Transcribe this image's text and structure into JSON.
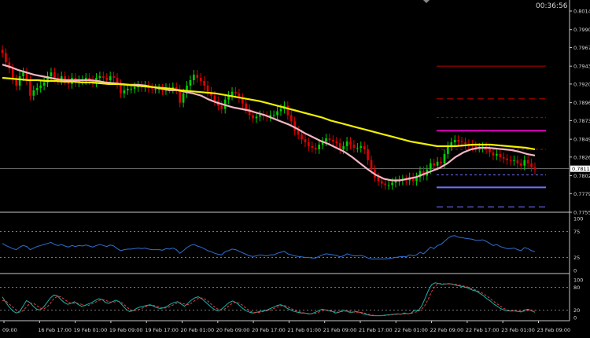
{
  "clock": "00:36:56",
  "colors": {
    "background": "#000000",
    "up": "#00d000",
    "down": "#e00000",
    "ma_fast": "#f4b6c2",
    "ma_slow": "#f0f000",
    "rsi": "#2f6fd0",
    "stoch_main": "#1ab0a8",
    "stoch_signal": "#e04040",
    "level_magenta": "#e000c0",
    "level_red": "#c00000",
    "level_blue": "#7070ff",
    "current_line": "#888888",
    "axis": "#d8d8d8"
  },
  "chart_data": [
    {
      "type": "candlestick",
      "panel": "price",
      "ylim": [
        0.7755,
        0.8014
      ],
      "price_ticks": [
        "0.8014",
        "0.7990",
        "0.7967",
        "0.7943",
        "0.7920",
        "0.7896",
        "0.7873",
        "0.7849",
        "0.7826",
        "0.7802",
        "0.7779",
        "0.7755"
      ],
      "current_price": "0.7811",
      "time_labels": [
        "09:00",
        "16 Feb 17:00",
        "19 Feb 01:00",
        "19 Feb 09:00",
        "19 Feb 17:00",
        "20 Feb 01:00",
        "20 Feb 09:00",
        "20 Feb 17:00",
        "21 Feb 01:00",
        "21 Feb 09:00",
        "21 Feb 17:00",
        "22 Feb 01:00",
        "22 Feb 09:00",
        "22 Feb 17:00",
        "23 Feb 01:00",
        "23 Feb 09:00"
      ],
      "close": [
        0.796,
        0.7948,
        0.794,
        0.7926,
        0.7918,
        0.793,
        0.7935,
        0.7925,
        0.7905,
        0.7912,
        0.7915,
        0.7918,
        0.7922,
        0.793,
        0.7935,
        0.7928,
        0.7925,
        0.793,
        0.7925,
        0.792,
        0.7928,
        0.7922,
        0.7925,
        0.7925,
        0.7928,
        0.7925,
        0.7922,
        0.7928,
        0.793,
        0.7928,
        0.7925,
        0.793,
        0.7928,
        0.792,
        0.7908,
        0.7912,
        0.7914,
        0.7914,
        0.7916,
        0.7918,
        0.7916,
        0.7918,
        0.7915,
        0.7914,
        0.7914,
        0.7914,
        0.7912,
        0.7915,
        0.7914,
        0.7916,
        0.7913,
        0.7896,
        0.7908,
        0.7918,
        0.7925,
        0.7932,
        0.7928,
        0.7924,
        0.7918,
        0.791,
        0.7905,
        0.7898,
        0.7892,
        0.7888,
        0.79,
        0.7905,
        0.791,
        0.7908,
        0.7902,
        0.7895,
        0.7888,
        0.788,
        0.7876,
        0.7878,
        0.788,
        0.7879,
        0.7878,
        0.788,
        0.788,
        0.7885,
        0.7888,
        0.7892,
        0.788,
        0.7872,
        0.786,
        0.7855,
        0.7849,
        0.7845,
        0.784,
        0.7838,
        0.7836,
        0.7842,
        0.7846,
        0.785,
        0.7848,
        0.7846,
        0.7844,
        0.7836,
        0.784,
        0.7846,
        0.7842,
        0.7838,
        0.7838,
        0.784,
        0.7836,
        0.7822,
        0.781,
        0.78,
        0.7795,
        0.7792,
        0.779,
        0.779,
        0.7793,
        0.7795,
        0.7796,
        0.7797,
        0.7796,
        0.78,
        0.7795,
        0.78,
        0.7808,
        0.7802,
        0.781,
        0.7818,
        0.7815,
        0.782,
        0.7818,
        0.783,
        0.784,
        0.7845,
        0.7848,
        0.7846,
        0.7845,
        0.7843,
        0.7842,
        0.784,
        0.7838,
        0.7838,
        0.7839,
        0.7836,
        0.7832,
        0.7828,
        0.783,
        0.7826,
        0.7824,
        0.7822,
        0.7821,
        0.7822,
        0.7818,
        0.7815,
        0.7822,
        0.7818,
        0.7813,
        0.781
      ],
      "overlays": [
        {
          "id": "ma_fast",
          "values": [
            0.7945,
            0.7942,
            0.7938,
            0.7935,
            0.7932,
            0.793,
            0.7928,
            0.7926,
            0.7925,
            0.7925,
            0.7925,
            0.7925,
            0.7924,
            0.7922,
            0.7921,
            0.792,
            0.7919,
            0.7919,
            0.7918,
            0.7916,
            0.7914,
            0.7912,
            0.7912,
            0.791,
            0.7908,
            0.7905,
            0.79,
            0.7896,
            0.7893,
            0.789,
            0.7888,
            0.7886,
            0.7883,
            0.788,
            0.7876,
            0.7872,
            0.7868,
            0.7863,
            0.7857,
            0.7852,
            0.7847,
            0.7843,
            0.7838,
            0.7833,
            0.7826,
            0.7818,
            0.781,
            0.7803,
            0.7798,
            0.7796,
            0.7796,
            0.7798,
            0.78,
            0.7804,
            0.7808,
            0.7812,
            0.7818,
            0.7826,
            0.7832,
            0.7836,
            0.7838,
            0.7838,
            0.7837,
            0.7836,
            0.7835,
            0.7833,
            0.783,
            0.7828
          ]
        },
        {
          "id": "ma_slow",
          "values": [
            0.7928,
            0.7927,
            0.7926,
            0.7925,
            0.7925,
            0.7924,
            0.7924,
            0.7923,
            0.7923,
            0.7922,
            0.7922,
            0.7921,
            0.792,
            0.792,
            0.7919,
            0.7918,
            0.7917,
            0.7916,
            0.7915,
            0.7914,
            0.7912,
            0.7911,
            0.791,
            0.7909,
            0.7908,
            0.7906,
            0.7904,
            0.7902,
            0.79,
            0.7898,
            0.7895,
            0.7892,
            0.7889,
            0.7886,
            0.7883,
            0.788,
            0.7877,
            0.7873,
            0.787,
            0.7867,
            0.7864,
            0.7861,
            0.7858,
            0.7855,
            0.7852,
            0.7849,
            0.7846,
            0.7844,
            0.7842,
            0.784,
            0.784,
            0.784,
            0.7841,
            0.7842,
            0.7842,
            0.7842,
            0.7841,
            0.784,
            0.7839,
            0.7838,
            0.7836
          ]
        }
      ],
      "levels": [
        {
          "value": 0.7943,
          "style": "solid",
          "color": "level_red"
        },
        {
          "value": 0.7901,
          "style": "dashed",
          "color": "level_red"
        },
        {
          "value": 0.7877,
          "style": "dotted",
          "color": "level_red"
        },
        {
          "value": 0.786,
          "style": "solid",
          "color": "level_magenta"
        },
        {
          "value": 0.7836,
          "style": "dotted",
          "color": "level_red"
        },
        {
          "value": 0.7803,
          "style": "dotted",
          "color": "level_blue"
        },
        {
          "value": 0.7787,
          "style": "solid",
          "color": "level_blue"
        },
        {
          "value": 0.7762,
          "style": "dashed",
          "color": "level_blue"
        }
      ]
    },
    {
      "type": "line",
      "panel": "rsi",
      "ylim": [
        0,
        100
      ],
      "ticks": [
        "100",
        "75",
        "25",
        "0"
      ],
      "values": [
        52,
        48,
        45,
        42,
        40,
        45,
        48,
        46,
        40,
        43,
        46,
        48,
        50,
        52,
        54,
        50,
        48,
        50,
        47,
        45,
        48,
        46,
        48,
        47,
        49,
        47,
        45,
        48,
        50,
        48,
        46,
        49,
        47,
        42,
        38,
        40,
        41,
        41,
        42,
        43,
        42,
        43,
        41,
        40,
        40,
        40,
        39,
        42,
        41,
        43,
        40,
        33,
        38,
        44,
        48,
        50,
        47,
        45,
        42,
        38,
        36,
        33,
        31,
        30,
        36,
        38,
        41,
        40,
        37,
        34,
        31,
        28,
        27,
        28,
        30,
        29,
        28,
        30,
        30,
        33,
        35,
        37,
        32,
        30,
        28,
        27,
        26,
        25,
        25,
        24,
        24,
        27,
        30,
        32,
        31,
        30,
        29,
        26,
        28,
        32,
        30,
        28,
        28,
        29,
        27,
        24,
        22,
        22,
        22,
        22,
        22,
        23,
        24,
        25,
        26,
        27,
        26,
        30,
        28,
        30,
        35,
        32,
        38,
        45,
        42,
        48,
        50,
        56,
        62,
        66,
        67,
        64,
        63,
        62,
        61,
        60,
        58,
        58,
        59,
        56,
        52,
        48,
        50,
        46,
        44,
        42,
        42,
        43,
        40,
        38,
        44,
        42,
        38,
        36
      ]
    },
    {
      "type": "line",
      "panel": "stochastic",
      "ylim": [
        0,
        100
      ],
      "ticks": [
        "100",
        "80",
        "20",
        "0"
      ],
      "series": [
        {
          "id": "stoch_main",
          "values": [
            55,
            40,
            28,
            18,
            12,
            15,
            30,
            45,
            40,
            30,
            22,
            20,
            28,
            40,
            52,
            60,
            58,
            48,
            40,
            35,
            38,
            42,
            35,
            30,
            32,
            36,
            40,
            45,
            50,
            48,
            40,
            38,
            42,
            46,
            42,
            32,
            22,
            16,
            18,
            24,
            28,
            30,
            32,
            34,
            30,
            26,
            24,
            26,
            30,
            36,
            40,
            42,
            36,
            30,
            38,
            46,
            52,
            55,
            50,
            42,
            34,
            26,
            20,
            18,
            24,
            32,
            40,
            44,
            40,
            32,
            24,
            18,
            14,
            12,
            14,
            16,
            18,
            20,
            24,
            28,
            32,
            34,
            30,
            24,
            20,
            16,
            14,
            12,
            12,
            10,
            10,
            14,
            18,
            22,
            20,
            18,
            16,
            12,
            14,
            20,
            18,
            14,
            14,
            16,
            14,
            10,
            8,
            6,
            5,
            5,
            5,
            6,
            7,
            8,
            9,
            10,
            9,
            12,
            10,
            12,
            20,
            18,
            30,
            50,
            72,
            88,
            92,
            90,
            88,
            89,
            90,
            88,
            86,
            84,
            82,
            80,
            76,
            72,
            70,
            64,
            58,
            50,
            44,
            36,
            30,
            24,
            20,
            18,
            17,
            18,
            16,
            15,
            20,
            22,
            18,
            14
          ]
        },
        {
          "id": "stoch_signal",
          "values": [
            45,
            44,
            36,
            28,
            20,
            14,
            18,
            28,
            38,
            38,
            32,
            25,
            23,
            28,
            38,
            50,
            56,
            55,
            49,
            42,
            38,
            38,
            38,
            35,
            32,
            32,
            36,
            40,
            45,
            48,
            46,
            42,
            40,
            42,
            43,
            38,
            30,
            22,
            18,
            19,
            22,
            26,
            30,
            32,
            32,
            30,
            27,
            25,
            26,
            30,
            35,
            39,
            39,
            36,
            34,
            38,
            45,
            51,
            52,
            49,
            42,
            34,
            26,
            21,
            20,
            24,
            32,
            38,
            41,
            38,
            32,
            24,
            18,
            14,
            13,
            14,
            16,
            18,
            20,
            24,
            28,
            31,
            32,
            29,
            24,
            20,
            16,
            14,
            12,
            11,
            10,
            11,
            14,
            18,
            20,
            20,
            18,
            15,
            14,
            16,
            17,
            17,
            15,
            14,
            14,
            13,
            10,
            8,
            6,
            5,
            5,
            5,
            6,
            7,
            8,
            9,
            9,
            10,
            10,
            11,
            14,
            16,
            22,
            32,
            50,
            70,
            84,
            90,
            90,
            89,
            89,
            89,
            88,
            86,
            84,
            82,
            79,
            75,
            72,
            68,
            63,
            57,
            50,
            43,
            36,
            30,
            24,
            20,
            18,
            17,
            17,
            16,
            17,
            19,
            20,
            18
          ]
        }
      ]
    }
  ]
}
